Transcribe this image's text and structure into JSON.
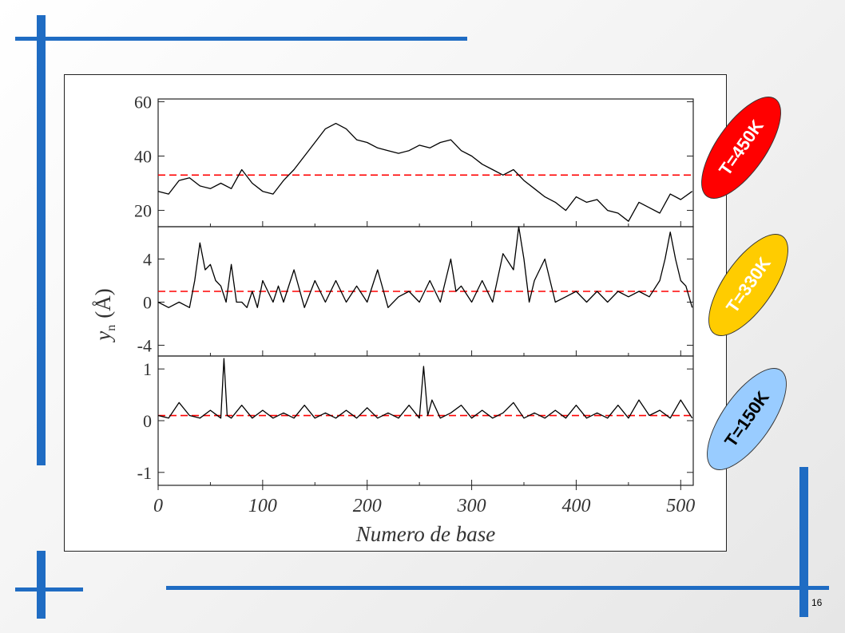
{
  "slide": {
    "page_number": "16",
    "accent_color": "#1f6cc3"
  },
  "badges": [
    {
      "label": "T=450K",
      "fill": "#ff0000",
      "text_color": "#ffffff"
    },
    {
      "label": "T=330K",
      "fill": "#ffcc00",
      "text_color": "#ffffff"
    },
    {
      "label": "T=150K",
      "fill": "#99ccff",
      "text_color": "#000000"
    }
  ],
  "chart_data": {
    "type": "line",
    "xlabel": "Numero de base",
    "ylabel_main": "y",
    "ylabel_sub": "n",
    "ylabel_unit": "(Å)",
    "x_ticks": [
      "0",
      "100",
      "200",
      "300",
      "400",
      "500"
    ],
    "xlim": [
      0,
      512
    ],
    "line_color": "#000000",
    "mean_line_color": "#ff0000",
    "mean_line_style": "dashed",
    "panels": [
      {
        "id": "T=450K",
        "ylim": [
          14,
          61
        ],
        "y_ticks": [
          "60",
          "40",
          "20"
        ],
        "mean": 33,
        "x": [
          0,
          10,
          20,
          30,
          40,
          50,
          60,
          70,
          80,
          90,
          100,
          110,
          120,
          130,
          140,
          150,
          160,
          170,
          180,
          190,
          200,
          210,
          220,
          230,
          240,
          250,
          260,
          270,
          280,
          290,
          300,
          310,
          320,
          330,
          340,
          350,
          360,
          370,
          380,
          390,
          400,
          410,
          420,
          430,
          440,
          450,
          460,
          470,
          480,
          490,
          500,
          511
        ],
        "values": [
          27,
          26,
          31,
          32,
          29,
          28,
          30,
          28,
          35,
          30,
          27,
          26,
          31,
          35,
          40,
          45,
          50,
          52,
          50,
          46,
          45,
          43,
          42,
          41,
          42,
          44,
          43,
          45,
          46,
          42,
          40,
          37,
          35,
          33,
          35,
          31,
          28,
          25,
          23,
          20,
          25,
          23,
          24,
          20,
          19,
          16,
          23,
          21,
          19,
          26,
          24,
          27
        ]
      },
      {
        "id": "T=330K",
        "ylim": [
          -5,
          7
        ],
        "y_ticks": [
          "4",
          "0",
          "-4"
        ],
        "mean": 1,
        "x": [
          0,
          10,
          20,
          30,
          35,
          40,
          45,
          50,
          55,
          60,
          65,
          70,
          75,
          80,
          85,
          90,
          95,
          100,
          110,
          115,
          120,
          130,
          140,
          150,
          160,
          170,
          180,
          190,
          200,
          210,
          220,
          230,
          240,
          250,
          260,
          270,
          280,
          285,
          290,
          300,
          310,
          320,
          330,
          340,
          345,
          350,
          355,
          360,
          370,
          380,
          390,
          400,
          410,
          420,
          430,
          440,
          450,
          460,
          470,
          480,
          485,
          490,
          495,
          500,
          505,
          511
        ],
        "values": [
          0,
          -0.5,
          0,
          -0.5,
          2,
          5.5,
          3,
          3.5,
          2,
          1.5,
          0,
          3.5,
          0,
          0,
          -0.5,
          1,
          -0.5,
          2,
          0,
          1.5,
          0,
          3,
          -0.5,
          2,
          0,
          2,
          0,
          1.5,
          0,
          3,
          -0.5,
          0.5,
          1,
          0,
          2,
          0,
          4,
          1,
          1.5,
          0,
          2,
          0,
          4.5,
          3,
          7,
          4,
          0,
          2,
          4,
          0,
          0.5,
          1,
          0,
          1,
          0,
          1,
          0.5,
          1,
          0.5,
          2,
          4,
          6.5,
          4,
          2,
          1.5,
          -0.5
        ]
      },
      {
        "id": "T=150K",
        "ylim": [
          -1.25,
          1.25
        ],
        "y_ticks": [
          "1",
          "0",
          "-1"
        ],
        "mean": 0.1,
        "x": [
          0,
          10,
          20,
          30,
          40,
          50,
          60,
          63,
          66,
          70,
          80,
          90,
          100,
          110,
          120,
          130,
          140,
          150,
          160,
          170,
          180,
          190,
          200,
          210,
          220,
          230,
          240,
          250,
          254,
          258,
          262,
          270,
          280,
          290,
          300,
          310,
          320,
          330,
          340,
          350,
          360,
          370,
          380,
          390,
          400,
          410,
          420,
          430,
          440,
          450,
          460,
          470,
          480,
          490,
          500,
          511
        ],
        "values": [
          0.1,
          0.05,
          0.35,
          0.1,
          0.05,
          0.2,
          0.05,
          1.2,
          0.1,
          0.05,
          0.3,
          0.05,
          0.2,
          0.05,
          0.15,
          0.05,
          0.3,
          0.05,
          0.15,
          0.05,
          0.2,
          0.05,
          0.25,
          0.05,
          0.15,
          0.05,
          0.3,
          0.05,
          1.05,
          0.1,
          0.4,
          0.05,
          0.15,
          0.3,
          0.05,
          0.2,
          0.05,
          0.15,
          0.35,
          0.05,
          0.15,
          0.05,
          0.2,
          0.05,
          0.3,
          0.05,
          0.15,
          0.05,
          0.3,
          0.05,
          0.4,
          0.1,
          0.2,
          0.05,
          0.4,
          0.05
        ]
      }
    ]
  }
}
